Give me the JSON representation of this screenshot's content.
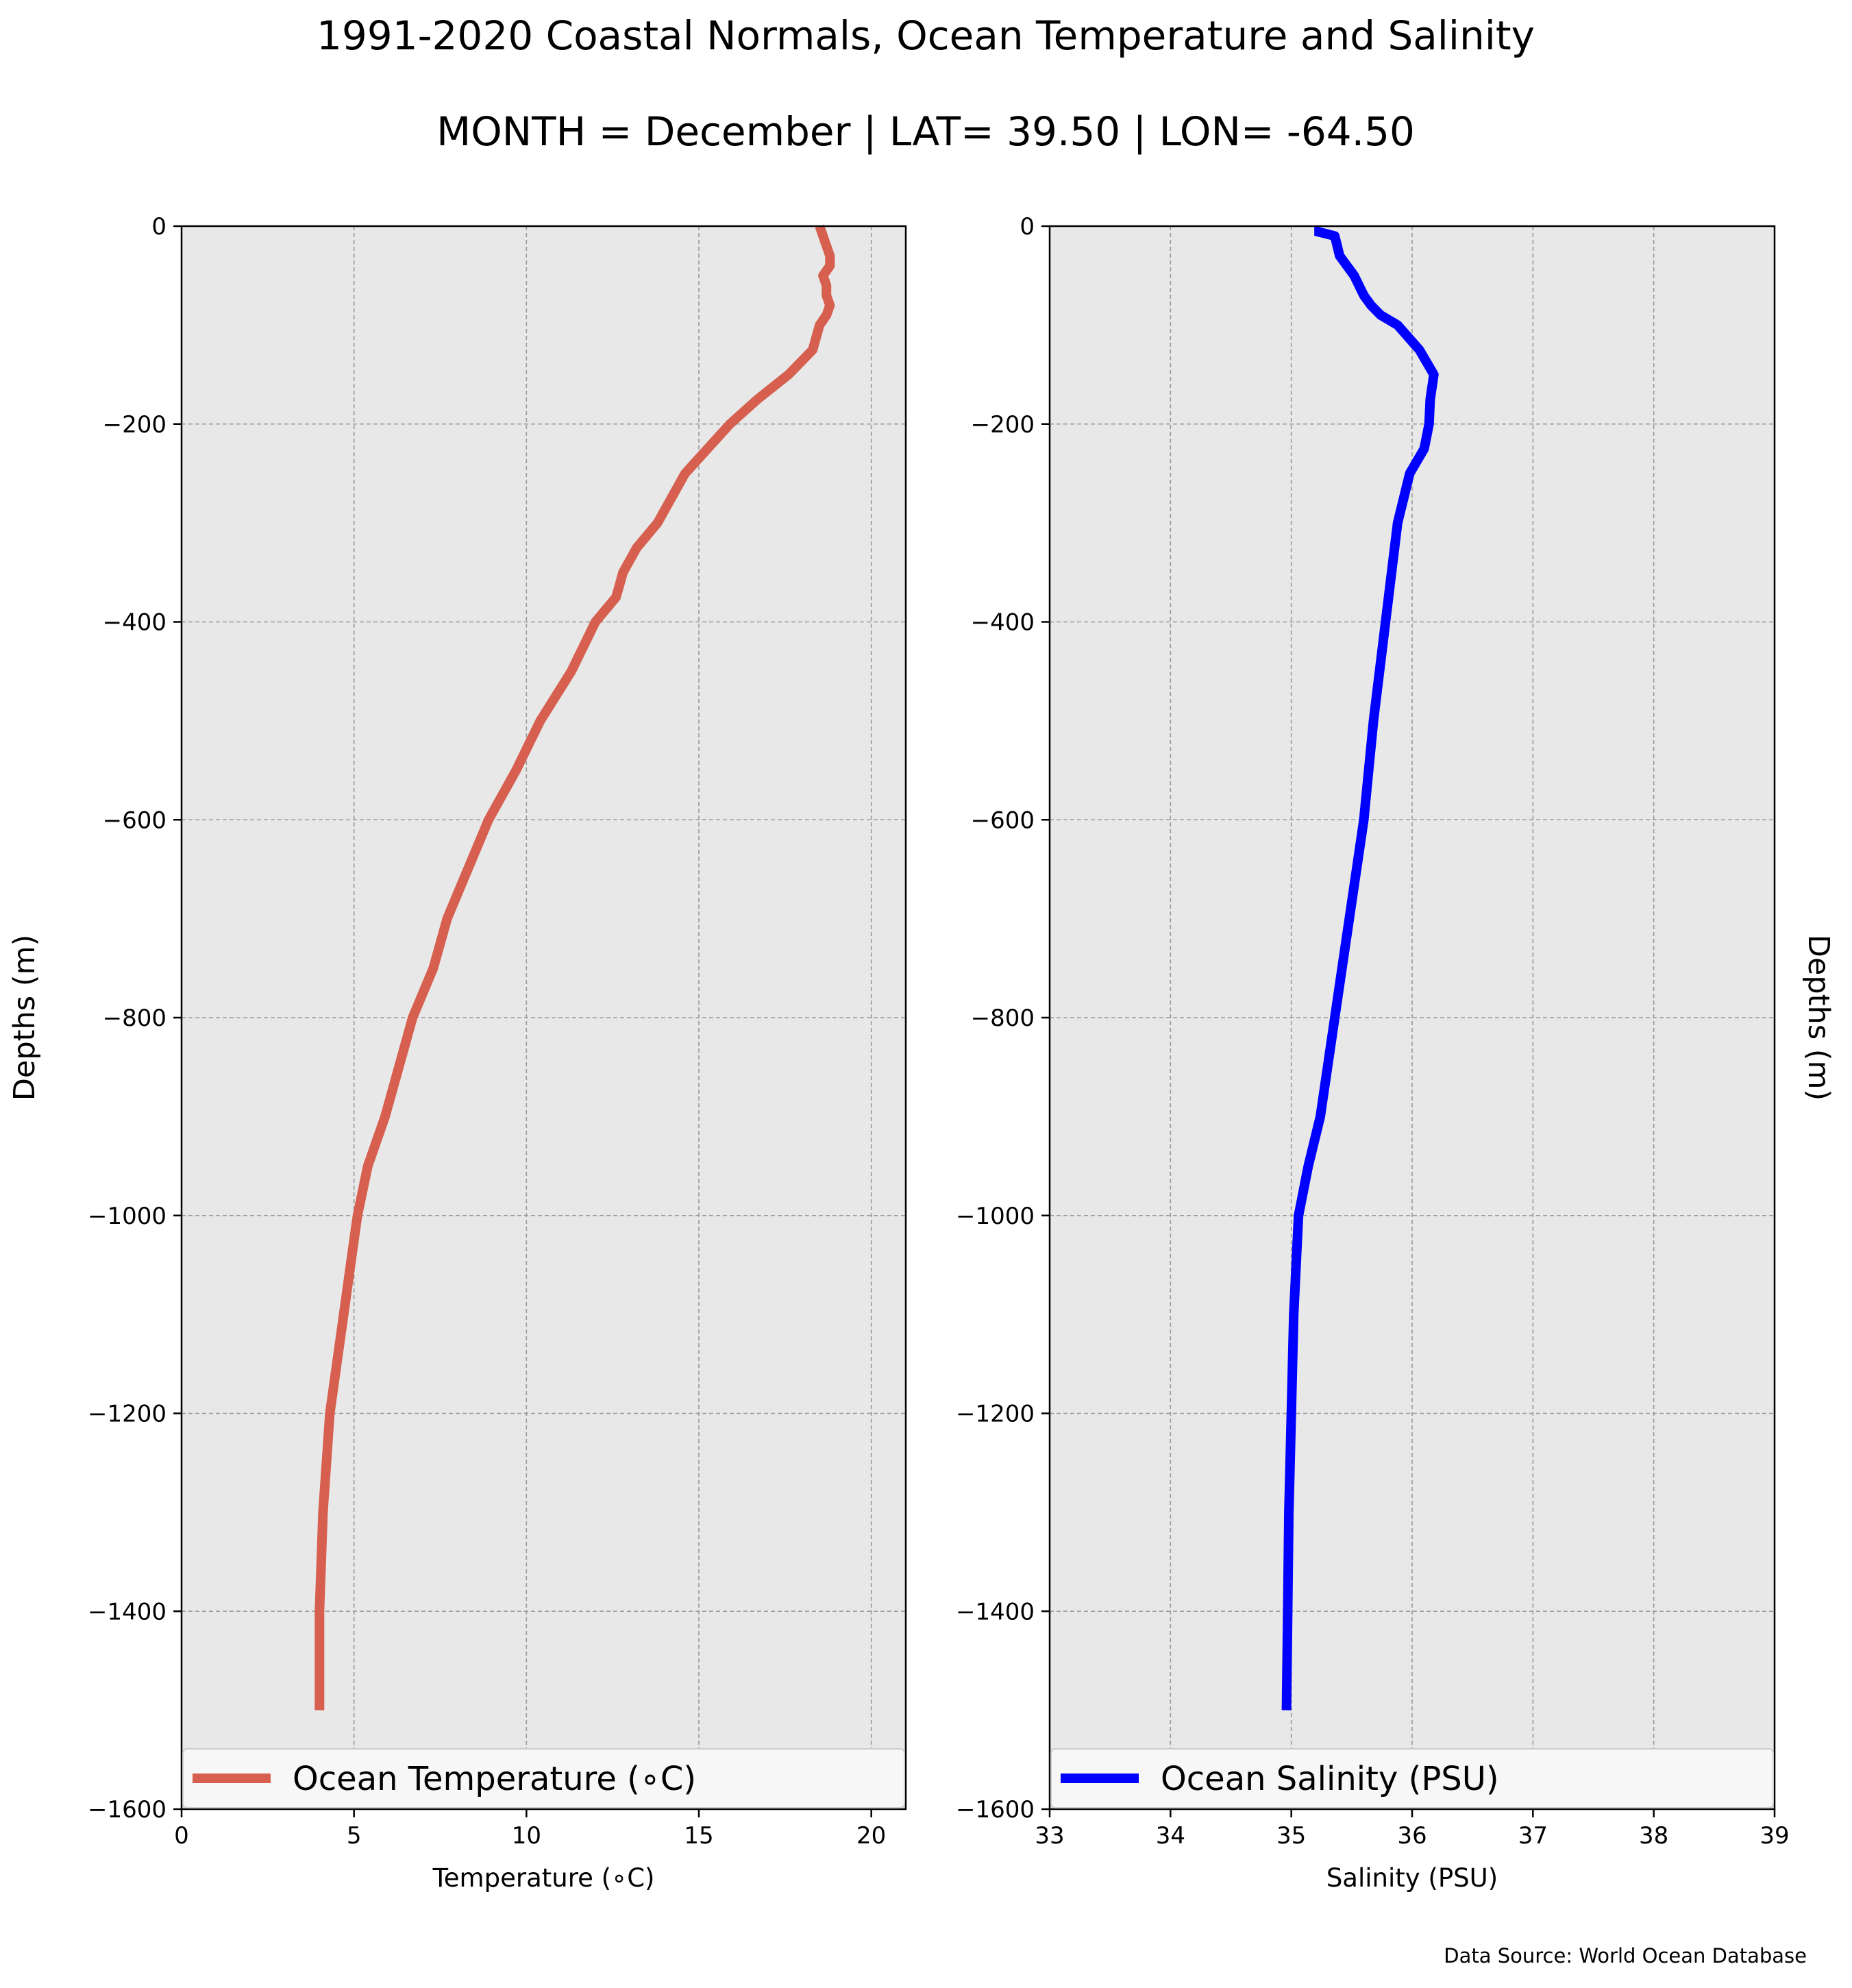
{
  "figure": {
    "title_line1": "1991-2020 Coastal Normals, Ocean Temperature and Salinity",
    "title_line2": "MONTH = December | LAT= 39.50 | LON= -64.50",
    "source": "Data Source: World Ocean Database",
    "colors": {
      "background": "#ffffff",
      "axes_face": "#e8e8e8",
      "grid": "#999999",
      "temperature": "#d65f4f",
      "salinity": "#0000ff"
    }
  },
  "chart_data": [
    {
      "type": "line",
      "xlabel": "Temperature (∘C)",
      "ylabel": "Depths (m)",
      "ylabel_side": "left",
      "xlim": [
        0,
        21
      ],
      "ylim": [
        -1600,
        0
      ],
      "xticks": [
        0,
        5,
        10,
        15,
        20
      ],
      "xtick_labels": [
        "0",
        "5",
        "10",
        "15",
        "20"
      ],
      "yticks": [
        0,
        -200,
        -400,
        -600,
        -800,
        -1000,
        -1200,
        -1400,
        -1600
      ],
      "ytick_labels": [
        "0",
        "−200",
        "−400",
        "−600",
        "−800",
        "−1000",
        "−1200",
        "−1400",
        "−1600"
      ],
      "grid": true,
      "legend_position": "lower-center",
      "series": [
        {
          "name": "Ocean Temperature (∘C)",
          "color": "#d65f4f",
          "x": [
            18.5,
            18.6,
            18.7,
            18.8,
            18.8,
            18.6,
            18.7,
            18.7,
            18.8,
            18.7,
            18.5,
            18.3,
            17.6,
            16.7,
            15.9,
            14.6,
            13.8,
            13.2,
            12.8,
            12.6,
            12.0,
            11.3,
            10.4,
            9.7,
            8.9,
            8.3,
            7.7,
            7.3,
            6.7,
            6.3,
            5.9,
            5.4,
            5.1,
            4.9,
            4.7,
            4.5,
            4.3,
            4.2,
            4.1,
            4.0,
            4.0
          ],
          "y": [
            0,
            -10,
            -20,
            -30,
            -40,
            -50,
            -60,
            -70,
            -80,
            -90,
            -100,
            -125,
            -150,
            -175,
            -200,
            -250,
            -300,
            -325,
            -350,
            -375,
            -400,
            -450,
            -500,
            -550,
            -600,
            -650,
            -700,
            -750,
            -800,
            -850,
            -900,
            -950,
            -1000,
            -1050,
            -1100,
            -1150,
            -1200,
            -1250,
            -1300,
            -1400,
            -1500
          ]
        }
      ]
    },
    {
      "type": "line",
      "xlabel": "Salinity (PSU)",
      "ylabel": "Depths (m)",
      "ylabel_side": "right",
      "xlim": [
        33,
        39
      ],
      "ylim": [
        -1600,
        0
      ],
      "xticks": [
        33,
        34,
        35,
        36,
        37,
        38,
        39
      ],
      "xtick_labels": [
        "33",
        "34",
        "35",
        "36",
        "37",
        "38",
        "39"
      ],
      "yticks": [
        0,
        -200,
        -400,
        -600,
        -800,
        -1000,
        -1200,
        -1400,
        -1600
      ],
      "ytick_labels": [
        "0",
        "−200",
        "−400",
        "−600",
        "−800",
        "−1000",
        "−1200",
        "−1400",
        "−1600"
      ],
      "grid": true,
      "legend_position": "lower-center",
      "series": [
        {
          "name": "Ocean Salinity (PSU)",
          "color": "#0000ff",
          "x": [
            35.19,
            35.2,
            35.36,
            35.38,
            35.4,
            35.46,
            35.52,
            35.56,
            35.6,
            35.66,
            35.74,
            35.88,
            36.06,
            36.18,
            36.15,
            36.14,
            36.1,
            35.98,
            35.88,
            35.78,
            35.68,
            35.6,
            35.48,
            35.36,
            35.24,
            35.14,
            35.06,
            35.02,
            35.0,
            34.98,
            34.97,
            34.96
          ],
          "y": [
            -5,
            -5,
            -10,
            -20,
            -30,
            -40,
            -50,
            -60,
            -70,
            -80,
            -90,
            -100,
            -125,
            -150,
            -175,
            -200,
            -225,
            -250,
            -300,
            -400,
            -500,
            -600,
            -700,
            -800,
            -900,
            -950,
            -1000,
            -1100,
            -1200,
            -1300,
            -1400,
            -1500
          ]
        }
      ]
    }
  ]
}
